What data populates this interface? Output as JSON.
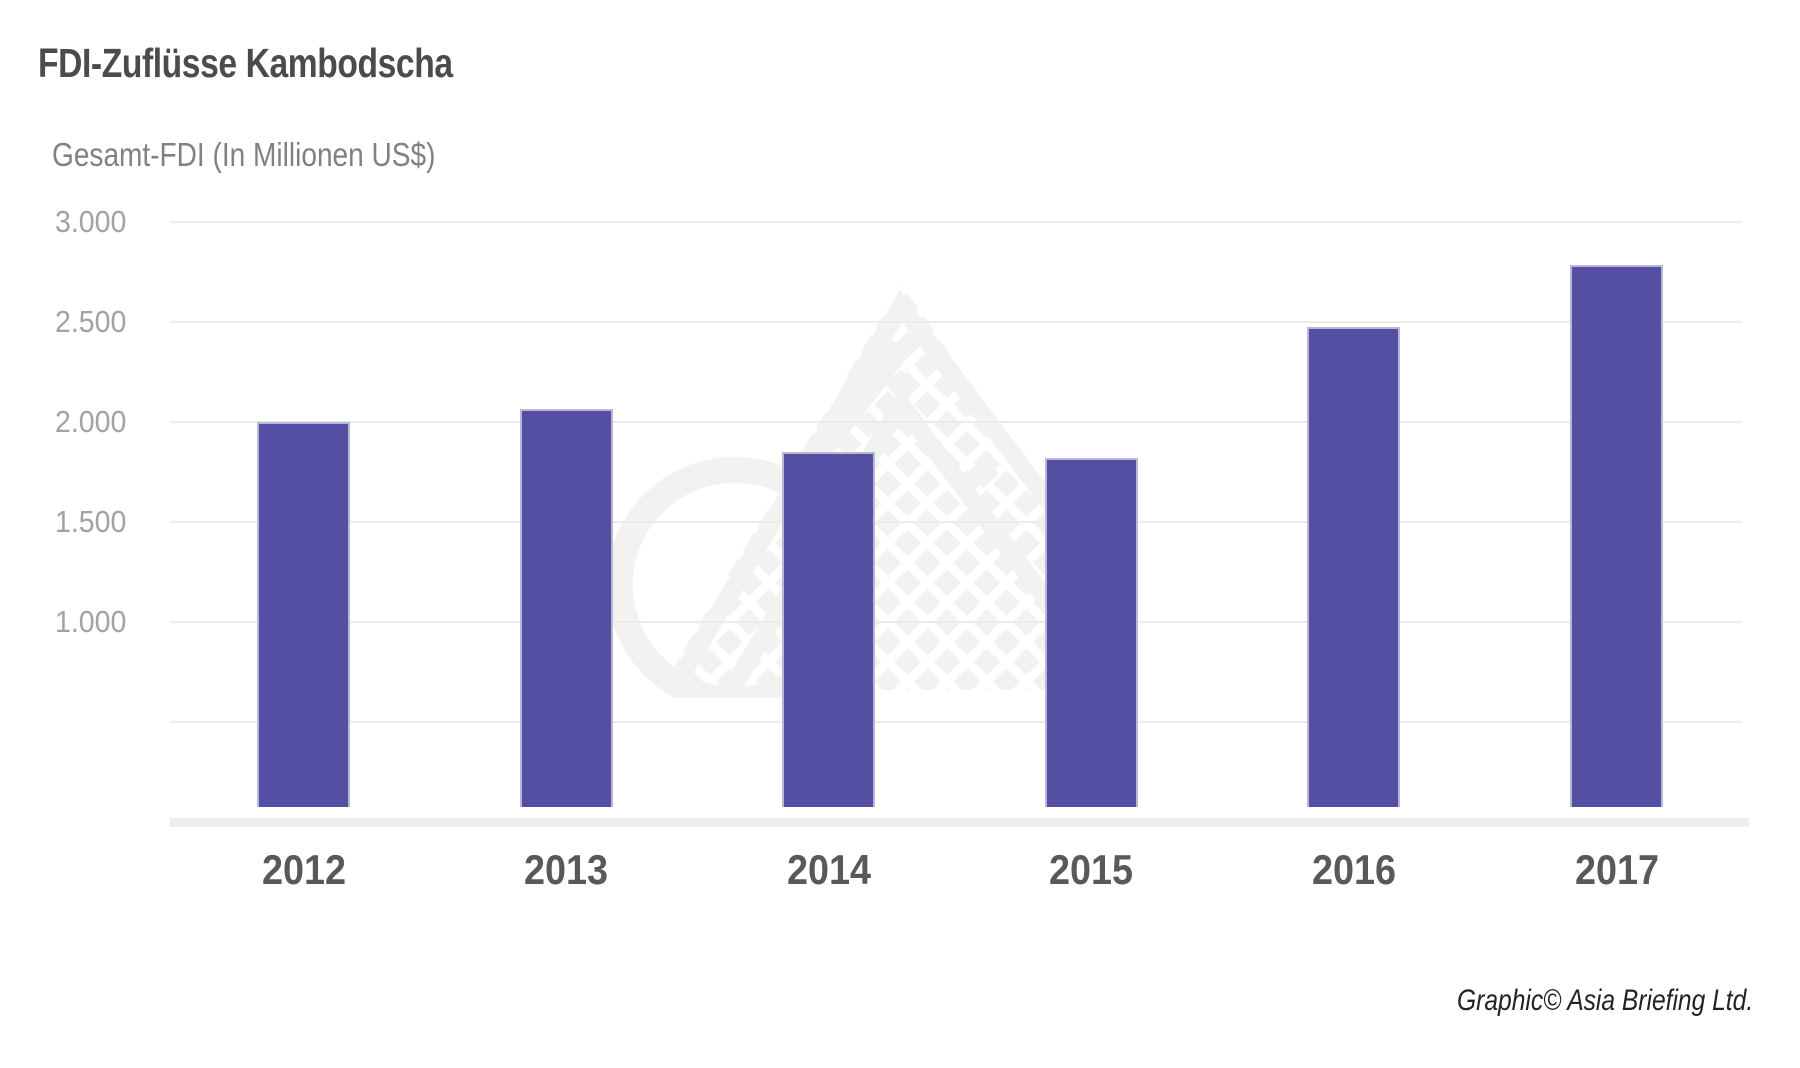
{
  "header": {
    "title": "FDI-Zuflüsse Kambodscha",
    "subtitle": "Gesamt-FDI (In Millionen US$)"
  },
  "footer": {
    "credit": "Graphic© Asia Briefing Ltd."
  },
  "watermark": {
    "name": "asia-briefing-logo-watermark"
  },
  "colors": {
    "bar": "#544fa3",
    "bar_edge": "#b9b7d8",
    "grid": "#ececec",
    "baseline": "#edeef0",
    "title": "#4b4b4d",
    "subtitle": "#7f8184",
    "tick": "#a1a2a5",
    "year": "#59595b",
    "credit": "#222222",
    "watermark": "#f3f2f0"
  },
  "chart_data": {
    "type": "bar",
    "title": "FDI-Zuflüsse Kambodscha",
    "ylabel": "Gesamt-FDI (In Millionen US$)",
    "xlabel": "",
    "categories": [
      "2012",
      "2013",
      "2014",
      "2015",
      "2016",
      "2017"
    ],
    "values": [
      2000,
      2065,
      1850,
      1820,
      2475,
      2785
    ],
    "unit": "Millionen US$",
    "ylim": [
      0,
      3000
    ],
    "yticks": [
      {
        "value": 3000,
        "label": "3.000"
      },
      {
        "value": 2500,
        "label": "2.500"
      },
      {
        "value": 2000,
        "label": "2.000"
      },
      {
        "value": 1500,
        "label": "1.500"
      },
      {
        "value": 1000,
        "label": "1.000"
      },
      {
        "value": 500,
        "label": ""
      }
    ],
    "grid": "horizontal",
    "legend": "none",
    "bar_color": "#544fa3"
  }
}
